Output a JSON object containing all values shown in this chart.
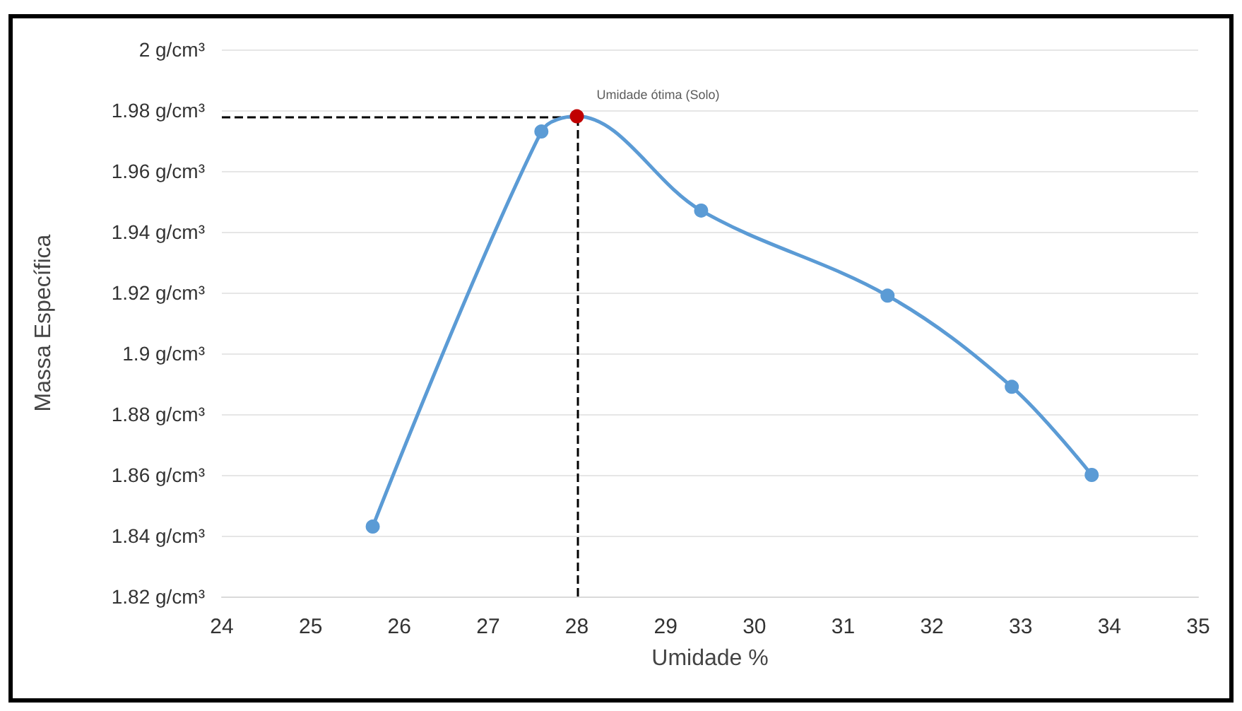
{
  "chart_data": {
    "type": "line",
    "xlabel": "Umidade %",
    "ylabel": "Massa Específica",
    "x": [
      25.7,
      27.6,
      28,
      29.4,
      31.5,
      32.9,
      33.8
    ],
    "series": [
      {
        "color": "#5b9bd5",
        "colors": [
          "#5b9bd5",
          "#5b9bd5",
          "#c00000",
          "#5b9bd5",
          "#5b9bd5",
          "#5b9bd5",
          "#5b9bd5"
        ],
        "values": [
          1.843,
          1.973,
          1.978,
          1.947,
          1.919,
          1.889,
          1.86
        ]
      }
    ],
    "xlim": [
      24,
      35
    ],
    "xticks": [
      24,
      25,
      26,
      27,
      28,
      29,
      30,
      31,
      32,
      33,
      34,
      35
    ],
    "ylim": [
      1.82,
      2
    ],
    "yticks": [
      {
        "value": 1.82,
        "label": "1.82 g/cm³"
      },
      {
        "value": 1.84,
        "label": "1.84 g/cm³"
      },
      {
        "value": 1.86,
        "label": "1.86 g/cm³"
      },
      {
        "value": 1.88,
        "label": "1.88 g/cm³"
      },
      {
        "value": 1.9,
        "label": "1.9 g/cm³"
      },
      {
        "value": 1.92,
        "label": "1.92 g/cm³"
      },
      {
        "value": 1.94,
        "label": "1.94 g/cm³"
      },
      {
        "value": 1.96,
        "label": "1.96 g/cm³"
      },
      {
        "value": 1.98,
        "label": "1.98 g/cm³"
      },
      {
        "value": 2,
        "label": "2 g/cm³"
      }
    ],
    "ref_lines": [
      {
        "axis": "x",
        "value": 28,
        "color": "#000000",
        "line_style": "dashed"
      },
      {
        "axis": "y",
        "value": 1.978,
        "color": "#000000",
        "line_style": "dashed"
      }
    ],
    "annotations": [
      {
        "text": "Umidade ótima (Solo)",
        "x": 28,
        "y": 1.978
      }
    ],
    "grid": "y",
    "marker": "circle",
    "line_style": "solid"
  }
}
